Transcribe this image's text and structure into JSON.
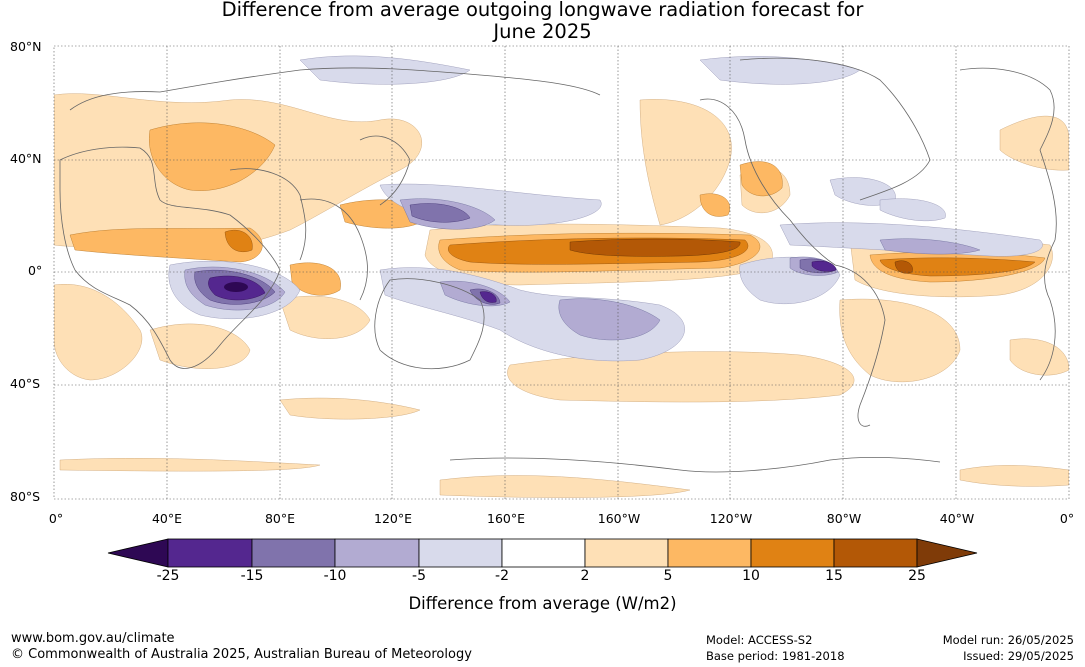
{
  "title": {
    "line1": "Difference from average outgoing longwave radiation forecast for",
    "line2": "June 2025"
  },
  "axes": {
    "lat_labels": [
      "80°N",
      "40°N",
      "0°",
      "40°S",
      "80°S"
    ],
    "lon_labels": [
      "0°",
      "40°E",
      "80°E",
      "120°E",
      "160°E",
      "160°W",
      "120°W",
      "80°W",
      "40°W",
      "0°"
    ]
  },
  "colorbar": {
    "title": "Difference from average (W/m2)",
    "ticks": [
      "-25",
      "-15",
      "-10",
      "-5",
      "-2",
      "2",
      "5",
      "10",
      "15",
      "25"
    ],
    "colors": {
      "below_-25": "#2e0854",
      "-25_-15": "#54278f",
      "-15_-10": "#8073ac",
      "-10_-5": "#b2abd2",
      "-5_-2": "#d8daeb",
      "-2_2": "#ffffff",
      "2_5": "#fee0b6",
      "5_10": "#fdb863",
      "10_15": "#e08214",
      "15_25": "#b35806",
      "above_25": "#7f3b08"
    }
  },
  "footer": {
    "url": "www.bom.gov.au/climate",
    "copyright": "© Commonwealth of Australia 2025, Australian Bureau of Meteorology",
    "model": "Model: ACCESS-S2",
    "base_period": "Base period: 1981-2018",
    "model_run": "Model run: 26/05/2025",
    "issued": "Issued: 29/05/2025"
  }
}
